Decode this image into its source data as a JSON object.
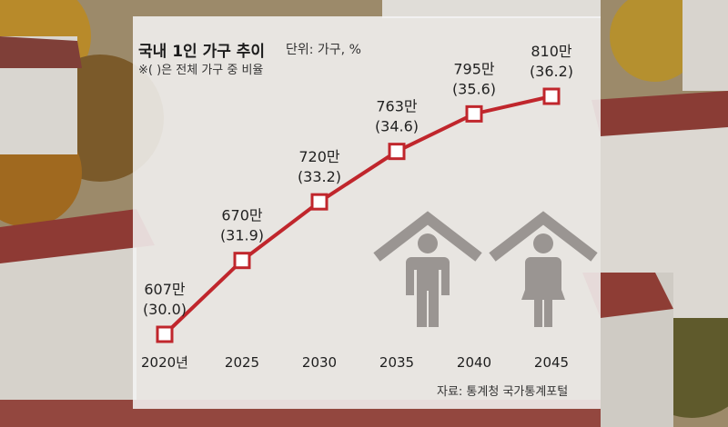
{
  "header": {
    "title": "국내 1인 가구 추이",
    "unit": "단위: 가구, %",
    "note": "※( )은 전체 가구 중 비율"
  },
  "source": "자료: 통계청 국가통계포털",
  "colors": {
    "line": "#c0262c",
    "marker_fill": "#ffffff",
    "panel": "#f4f4f4",
    "icons": "#9a9592"
  },
  "icons": [
    "house-man-icon",
    "house-woman-icon"
  ],
  "chart_data": {
    "type": "line",
    "title": "국내 1인 가구 추이",
    "unit": "단위: 가구, %",
    "note": "※( )은 전체 가구 중 비율",
    "categories": [
      "2020년",
      "2025",
      "2030",
      "2035",
      "2040",
      "2045"
    ],
    "series": [
      {
        "values": [
          6070000,
          6700000,
          7200000,
          7630000,
          7950000,
          8100000
        ],
        "value_labels": [
          "607만",
          "670만",
          "720만",
          "763만",
          "795만",
          "810만"
        ],
        "share_labels": [
          "(30.0)",
          "(31.9)",
          "(33.2)",
          "(34.6)",
          "(35.6)",
          "(36.2)"
        ],
        "share_percent": [
          30.0,
          31.9,
          33.2,
          34.6,
          35.6,
          36.2
        ]
      }
    ],
    "grid": false,
    "legend": "none"
  }
}
